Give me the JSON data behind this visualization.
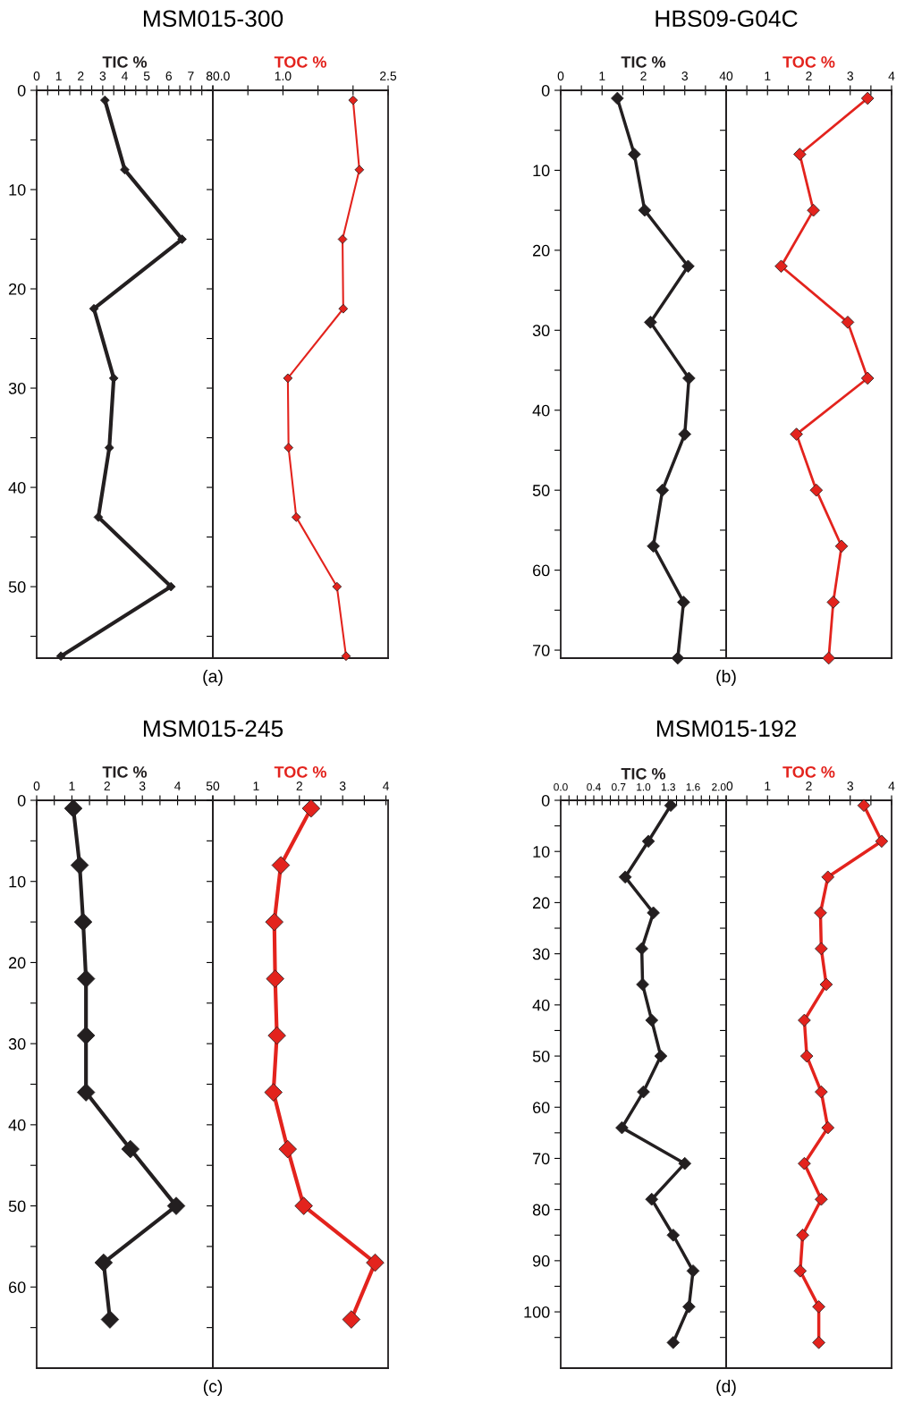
{
  "chart_data": [
    {
      "type": "line",
      "orientation": "horizontal",
      "title": "MSM015-300",
      "xlabel": "TIC %",
      "annotations": [
        "(a)"
      ],
      "marker": "diamond",
      "line_style": "solid",
      "x": [
        1,
        8,
        15,
        22,
        29,
        36,
        43,
        50,
        57
      ],
      "series": [
        {
          "color": "#231f20",
          "values": [
            3.1,
            4.0,
            6.6,
            2.6,
            3.5,
            3.3,
            2.8,
            6.1,
            1.1
          ]
        }
      ],
      "xlim": [
        0,
        8
      ],
      "xticks": [
        0,
        {
          "value": 0.5,
          "label": null
        },
        1,
        {
          "value": 1.5,
          "label": null
        },
        2,
        {
          "value": 2.5,
          "label": null
        },
        3,
        {
          "value": 3.5,
          "label": null
        },
        4,
        {
          "value": 4.5,
          "label": null
        },
        5,
        {
          "value": 5.5,
          "label": null
        },
        6,
        {
          "value": 6.5,
          "label": null
        },
        7,
        {
          "value": 7.5,
          "label": null
        },
        8
      ],
      "ylim": [
        57.2,
        0
      ],
      "yticks": [
        0,
        {
          "value": 5,
          "label": null
        },
        10,
        {
          "value": 15,
          "label": null
        },
        20,
        {
          "value": 25,
          "label": null
        },
        30,
        {
          "value": 35,
          "label": null
        },
        40,
        {
          "value": 45,
          "label": null
        },
        50,
        {
          "value": 55,
          "label": null
        }
      ]
    },
    {
      "type": "line",
      "orientation": "horizontal",
      "xlabel": "TOC %",
      "marker": "diamond",
      "line_style": "solid",
      "tick_labels": "x",
      "x": [
        1,
        8,
        15,
        22,
        29,
        36,
        43,
        50,
        57
      ],
      "series": [
        {
          "color": "#e3231d",
          "values": [
            2.0,
            2.09,
            1.85,
            1.86,
            1.07,
            1.08,
            1.19,
            1.77,
            1.9
          ]
        }
      ],
      "xlim": [
        0,
        2.5
      ],
      "xticks": [
        {
          "value": 0,
          "label": "0.0"
        },
        {
          "value": 0.5,
          "label": null
        },
        {
          "value": 1,
          "label": "1.0"
        },
        {
          "value": 1.5,
          "label": null
        },
        {
          "value": 2,
          "label": null
        },
        2.5
      ],
      "ylim": [
        57.2,
        0
      ],
      "yticks": [
        0,
        5,
        10,
        15,
        20,
        25,
        30,
        35,
        40,
        45,
        50,
        55
      ]
    },
    {
      "type": "line",
      "orientation": "horizontal",
      "title": "HBS09-G04C",
      "xlabel": "TIC %",
      "annotations": [
        "(b)"
      ],
      "marker": "diamond",
      "line_style": "solid",
      "x": [
        1,
        8,
        15,
        22,
        29,
        36,
        43,
        50,
        57,
        64,
        71
      ],
      "series": [
        {
          "color": "#231f20",
          "values": [
            1.37,
            1.78,
            2.03,
            3.08,
            2.17,
            3.1,
            3.0,
            2.46,
            2.24,
            2.97,
            2.83
          ]
        }
      ],
      "xlim": [
        0,
        4
      ],
      "xticks": [
        0,
        {
          "value": 0.5,
          "label": null
        },
        1,
        {
          "value": 1.5,
          "label": null
        },
        2,
        {
          "value": 2.5,
          "label": null
        },
        3,
        {
          "value": 3.5,
          "label": null
        },
        4
      ],
      "ylim": [
        71,
        0
      ],
      "yticks": [
        0,
        {
          "value": 5,
          "label": null
        },
        10,
        {
          "value": 15,
          "label": null
        },
        20,
        {
          "value": 25,
          "label": null
        },
        30,
        {
          "value": 35,
          "label": null
        },
        40,
        {
          "value": 45,
          "label": null
        },
        50,
        {
          "value": 55,
          "label": null
        },
        60,
        {
          "value": 65,
          "label": null
        },
        70
      ]
    },
    {
      "type": "line",
      "orientation": "horizontal",
      "xlabel": "TOC %",
      "marker": "diamond",
      "line_style": "solid",
      "tick_labels": "x",
      "x": [
        1,
        8,
        15,
        22,
        29,
        36,
        43,
        50,
        57,
        64,
        71
      ],
      "series": [
        {
          "color": "#e3231d",
          "values": [
            3.42,
            1.78,
            2.11,
            1.33,
            2.94,
            3.42,
            1.7,
            2.18,
            2.79,
            2.59,
            2.48
          ]
        }
      ],
      "xlim": [
        0,
        4
      ],
      "xticks": [
        0,
        {
          "value": 0.5,
          "label": null
        },
        1,
        {
          "value": 1.5,
          "label": null
        },
        2,
        {
          "value": 2.5,
          "label": null
        },
        3,
        {
          "value": 3.5,
          "label": null
        },
        4
      ],
      "ylim": [
        71,
        0
      ],
      "yticks": [
        0,
        5,
        10,
        15,
        20,
        25,
        30,
        35,
        40,
        45,
        50,
        55,
        60,
        65,
        70
      ]
    },
    {
      "type": "line",
      "orientation": "horizontal",
      "title": "MSM015-245",
      "xlabel": "TIC %",
      "annotations": [
        "(c)"
      ],
      "marker": "diamond",
      "line_style": "solid",
      "x": [
        1,
        8,
        15,
        22,
        29,
        36,
        43,
        50,
        57,
        64
      ],
      "series": [
        {
          "color": "#231f20",
          "values": [
            1.04,
            1.22,
            1.32,
            1.4,
            1.4,
            1.4,
            2.66,
            3.96,
            1.9,
            2.08
          ]
        }
      ],
      "xlim": [
        0,
        5
      ],
      "xticks": [
        0,
        {
          "value": 0.5,
          "label": null
        },
        1,
        {
          "value": 1.5,
          "label": null
        },
        2,
        {
          "value": 2.5,
          "label": null
        },
        3,
        {
          "value": 3.5,
          "label": null
        },
        4,
        {
          "value": 4.5,
          "label": null
        },
        5
      ],
      "ylim": [
        70,
        0
      ],
      "yticks": [
        0,
        {
          "value": 5,
          "label": null
        },
        10,
        {
          "value": 15,
          "label": null
        },
        20,
        {
          "value": 25,
          "label": null
        },
        30,
        {
          "value": 35,
          "label": null
        },
        40,
        {
          "value": 45,
          "label": null
        },
        50,
        {
          "value": 55,
          "label": null
        },
        60,
        {
          "value": 65,
          "label": null
        }
      ]
    },
    {
      "type": "line",
      "orientation": "horizontal",
      "xlabel": "TOC %",
      "marker": "diamond",
      "line_style": "solid",
      "tick_labels": "x",
      "x": [
        1,
        8,
        15,
        22,
        29,
        36,
        43,
        50,
        57,
        64
      ],
      "series": [
        {
          "color": "#e3231d",
          "values": [
            2.27,
            1.57,
            1.42,
            1.44,
            1.48,
            1.4,
            1.73,
            2.1,
            3.75,
            3.2
          ]
        }
      ],
      "xlim": [
        0,
        4.05
      ],
      "xticks": [
        0,
        {
          "value": 0.5,
          "label": null
        },
        1,
        {
          "value": 1.5,
          "label": null
        },
        2,
        {
          "value": 2.5,
          "label": null
        },
        3,
        {
          "value": 3.5,
          "label": null
        },
        4
      ],
      "ylim": [
        70,
        0
      ],
      "yticks": [
        0,
        5,
        10,
        15,
        20,
        25,
        30,
        35,
        40,
        45,
        50,
        55,
        60,
        65
      ]
    },
    {
      "type": "line",
      "orientation": "horizontal",
      "title": "MSM015-192",
      "xlabel": "TIC %",
      "annotations": [
        "(d)"
      ],
      "marker": "diamond",
      "line_style": "solid",
      "x": [
        1,
        8,
        15,
        22,
        29,
        36,
        43,
        50,
        57,
        64,
        71,
        78,
        85,
        92,
        99,
        106
      ],
      "series": [
        {
          "color": "#231f20",
          "values": [
            1.33,
            1.06,
            0.78,
            1.12,
            0.98,
            0.99,
            1.1,
            1.21,
            1.0,
            0.74,
            1.5,
            1.1,
            1.36,
            1.6,
            1.55,
            1.36
          ]
        }
      ],
      "xlim": [
        0,
        2
      ],
      "xticks": [
        {
          "value": 0,
          "label": "0.0"
        },
        {
          "value": 0.1,
          "label": null
        },
        {
          "value": 0.2,
          "label": null
        },
        {
          "value": 0.3,
          "label": null
        },
        {
          "value": 0.4,
          "label": "0.4"
        },
        {
          "value": 0.5,
          "label": null
        },
        {
          "value": 0.6,
          "label": null
        },
        {
          "value": 0.7,
          "label": "0.7"
        },
        {
          "value": 0.8,
          "label": null
        },
        {
          "value": 0.9,
          "label": null
        },
        {
          "value": 1.0,
          "label": "1.0"
        },
        {
          "value": 1.1,
          "label": null
        },
        {
          "value": 1.2,
          "label": null
        },
        {
          "value": 1.3,
          "label": "1.3"
        },
        {
          "value": 1.4,
          "label": null
        },
        {
          "value": 1.5,
          "label": null
        },
        {
          "value": 1.6,
          "label": "1.6"
        },
        {
          "value": 1.7,
          "label": null
        },
        {
          "value": 1.8,
          "label": null
        },
        {
          "value": 1.9,
          "label": null
        },
        {
          "value": 2.0,
          "label": "2.0"
        }
      ],
      "ylim": [
        111,
        0
      ],
      "yticks": [
        0,
        {
          "value": 5,
          "label": null
        },
        10,
        {
          "value": 15,
          "label": null
        },
        20,
        {
          "value": 25,
          "label": null
        },
        30,
        {
          "value": 35,
          "label": null
        },
        40,
        {
          "value": 45,
          "label": null
        },
        50,
        {
          "value": 55,
          "label": null
        },
        60,
        {
          "value": 65,
          "label": null
        },
        70,
        {
          "value": 75,
          "label": null
        },
        80,
        {
          "value": 85,
          "label": null
        },
        90,
        {
          "value": 95,
          "label": null
        },
        100,
        {
          "value": 105,
          "label": null
        }
      ]
    },
    {
      "type": "line",
      "orientation": "horizontal",
      "xlabel": "TOC %",
      "marker": "diamond",
      "line_style": "solid",
      "tick_labels": "x",
      "x": [
        1,
        8,
        15,
        22,
        29,
        36,
        43,
        50,
        57,
        64,
        71,
        78,
        85,
        92,
        99,
        106
      ],
      "series": [
        {
          "color": "#e3231d",
          "values": [
            3.33,
            3.76,
            2.46,
            2.28,
            2.3,
            2.42,
            1.89,
            1.95,
            2.3,
            2.46,
            1.89,
            2.3,
            1.85,
            1.79,
            2.24,
            2.24
          ]
        }
      ],
      "xlim": [
        0,
        4
      ],
      "xticks": [
        {
          "value": 0,
          "label": "0"
        },
        {
          "value": 0.5,
          "label": null
        },
        1,
        {
          "value": 1.5,
          "label": null
        },
        2,
        {
          "value": 2.5,
          "label": null
        },
        3,
        {
          "value": 3.5,
          "label": null
        },
        4
      ],
      "ylim": [
        111,
        0
      ],
      "yticks": [
        0,
        5,
        10,
        15,
        20,
        25,
        30,
        35,
        40,
        45,
        50,
        55,
        60,
        65,
        70,
        75,
        80,
        85,
        90,
        95,
        100,
        105
      ]
    }
  ]
}
